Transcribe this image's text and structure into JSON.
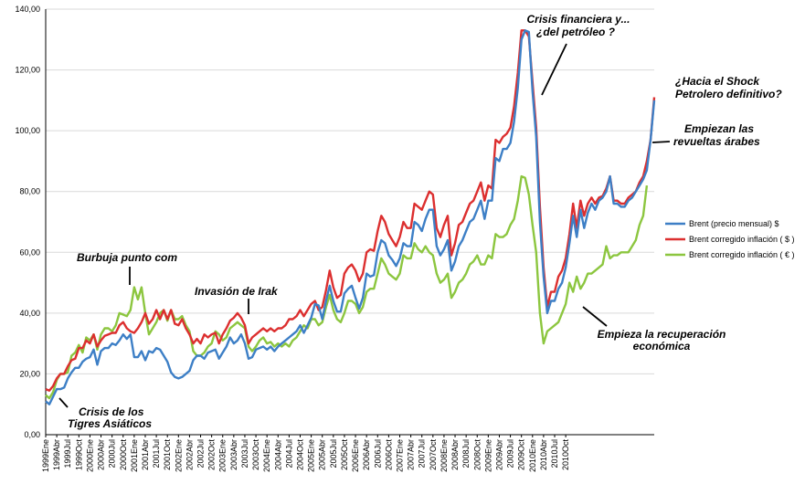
{
  "chart_data": {
    "type": "line",
    "title": "",
    "xlabel": "",
    "ylabel": "",
    "ylim": [
      0,
      140
    ],
    "yticks": [
      "0,00",
      "20,00",
      "40,00",
      "60,00",
      "80,00",
      "100,00",
      "120,00",
      "140,00"
    ],
    "x_tick_labels": [
      "1999Ene",
      "1999Abr",
      "1999Jul",
      "1999Oct",
      "2000Ene",
      "2000Abr",
      "2000Jul",
      "2000Oct",
      "2001Ene",
      "2001Abr",
      "2001Jul",
      "2001Oct",
      "2002Ene",
      "2002Abr",
      "2002Jul",
      "2002Oct",
      "2003Ene",
      "2003Abr",
      "2003Jul",
      "2003Oct",
      "2004Ene",
      "2004Abr",
      "2004Jul",
      "2004Oct",
      "2005Ene",
      "2005Abr",
      "2005Jul",
      "2005Oct",
      "2006Ene",
      "2006Abr",
      "2006Jul",
      "2006Oct",
      "2007Ene",
      "2007Abr",
      "2007Jul",
      "2007Oct",
      "2008Ene",
      "2008Abr",
      "2008Jul",
      "2008Oct",
      "2009Ene",
      "2009Abr",
      "2009Jul",
      "2009Oct",
      "2010Ene",
      "2010Abr",
      "2010Jul",
      "2010Oct"
    ],
    "x_start": "1999Ene",
    "x_step": "month",
    "grid": "horizontal",
    "legend_position": "right",
    "series": [
      {
        "name": "Brent (precio mensual) $",
        "color": "#3d7fc6",
        "values": [
          11,
          10,
          12.5,
          15,
          15,
          15.5,
          18.5,
          20.5,
          22,
          22,
          24,
          25,
          25.5,
          28,
          23,
          27.5,
          28.5,
          28.5,
          30,
          29.5,
          31,
          33,
          31.5,
          33,
          25.5,
          25.5,
          27.5,
          24.5,
          27.5,
          27,
          28.5,
          28,
          26,
          24,
          20.5,
          19,
          18.5,
          19,
          20,
          21,
          24.5,
          26,
          26,
          25,
          27,
          27.5,
          28,
          25,
          27,
          29,
          32,
          30,
          31,
          33,
          30,
          25,
          25.5,
          28,
          28.5,
          29,
          28,
          29,
          27.5,
          29,
          30,
          31,
          32,
          33,
          34,
          36,
          33.5,
          36,
          38.5,
          43,
          42.5,
          38,
          44,
          49,
          44,
          40.5,
          40.5,
          46.5,
          48,
          49,
          45,
          41.5,
          45,
          53,
          52,
          52.5,
          60,
          64,
          63,
          59,
          57.5,
          55.5,
          58,
          63,
          62,
          62,
          70,
          69,
          67,
          71,
          74,
          74,
          62,
          59,
          61,
          64,
          54,
          57,
          62,
          64,
          67,
          70,
          71,
          74,
          77,
          71,
          77,
          77,
          91,
          90,
          94,
          94,
          96,
          103,
          114,
          130,
          133,
          132.5,
          113,
          98,
          70,
          52,
          40,
          44,
          44,
          48,
          50,
          55,
          63,
          72,
          65,
          74,
          68,
          73,
          76,
          74,
          77,
          78,
          80,
          85,
          76,
          76,
          75,
          75,
          77,
          78,
          80,
          82,
          84,
          87,
          97,
          110
        ]
      },
      {
        "name": "Brent corregido inflación ( $ )",
        "color": "#dc2f2f",
        "values": [
          15,
          14.5,
          16,
          18.5,
          20,
          20,
          22.5,
          24.5,
          25,
          28.5,
          28.5,
          31,
          30,
          33,
          29,
          31,
          32.5,
          33,
          33.5,
          33.5,
          36,
          37,
          35,
          34,
          33.5,
          35,
          37,
          40,
          36.5,
          38,
          41,
          38,
          41,
          38,
          41,
          36.5,
          36,
          38,
          35,
          33,
          30,
          31.5,
          30,
          33,
          32,
          33,
          33.5,
          30,
          33,
          35,
          37.5,
          38.5,
          40,
          38.5,
          36,
          30,
          32,
          33,
          34,
          35,
          34,
          35,
          34,
          35,
          35,
          36,
          38,
          38,
          39,
          41,
          39,
          41,
          43,
          44,
          41,
          42,
          47.5,
          54,
          48.5,
          45,
          46,
          53,
          55,
          56,
          54,
          50.5,
          53,
          60,
          61,
          60.5,
          67,
          72,
          70,
          66,
          64,
          62,
          65,
          70,
          68,
          68,
          76,
          75,
          74,
          77,
          80,
          79,
          68,
          65,
          69,
          72,
          59,
          63,
          69,
          70,
          73,
          76,
          77,
          80,
          83,
          77,
          82,
          81,
          97,
          96,
          98,
          99,
          101,
          108,
          119,
          133,
          133,
          131,
          116,
          101,
          75,
          55,
          42,
          47,
          47,
          52,
          54,
          58,
          66,
          76,
          68,
          77,
          72,
          76,
          78,
          76,
          78,
          78.5,
          81,
          85,
          77,
          77,
          76,
          76,
          78,
          79,
          80,
          83,
          85,
          90,
          97,
          111
        ]
      },
      {
        "name": "Brent corregido inflación ( € )",
        "color": "#8cc63f",
        "values": [
          13,
          12,
          14,
          18,
          20,
          20,
          20.5,
          26,
          27,
          29.5,
          27,
          32,
          31,
          33,
          28,
          33,
          35,
          35,
          34,
          36,
          40,
          39.5,
          39,
          41,
          48.5,
          44.5,
          48.5,
          40,
          33,
          35,
          37,
          40,
          41,
          37.5,
          41,
          38,
          38,
          39,
          36,
          34,
          27.5,
          26,
          26,
          27,
          29,
          30,
          34,
          33,
          31,
          32,
          35,
          36,
          37,
          36,
          35,
          29,
          27.5,
          29,
          31,
          32,
          30,
          30.5,
          29,
          30,
          29,
          30,
          29,
          31,
          32,
          34,
          36,
          35,
          38,
          38,
          36,
          37,
          42,
          46,
          41,
          38,
          37,
          40,
          44,
          44,
          43,
          40,
          42,
          47,
          48,
          48,
          53,
          58,
          56,
          53,
          52,
          51,
          53,
          59,
          58,
          58,
          63,
          61,
          60,
          62,
          60,
          59,
          53,
          50,
          51,
          53,
          45,
          47,
          50,
          51,
          53,
          56,
          57,
          59,
          56,
          56,
          59,
          58,
          66,
          65,
          65,
          66,
          69,
          71,
          77,
          85,
          84.5,
          79,
          69,
          60,
          40,
          30,
          34,
          35,
          36,
          37,
          40,
          43,
          50,
          47,
          52,
          48,
          50,
          53,
          53,
          54,
          55,
          56,
          62,
          58,
          59,
          59,
          60,
          60,
          60,
          62,
          64,
          69,
          72,
          82
        ]
      }
    ]
  },
  "annotations": {
    "crisis_fin_line1": "Crisis financiera y...",
    "crisis_fin_line2": "¿del petróleo ?",
    "shock_line1": "¿Hacia el Shock",
    "shock_line2": "Petrolero definitivo?",
    "revueltas_line1": "Empiezan las",
    "revueltas_line2": "revueltas árabes",
    "burbuja": "Burbuja punto com",
    "irak": "Invasión de Irak",
    "recuperacion_line1": "Empieza la recuperación",
    "recuperacion_line2": "económica",
    "tigres_line1": "Crisis de los",
    "tigres_line2": "Tigres Asiáticos"
  }
}
